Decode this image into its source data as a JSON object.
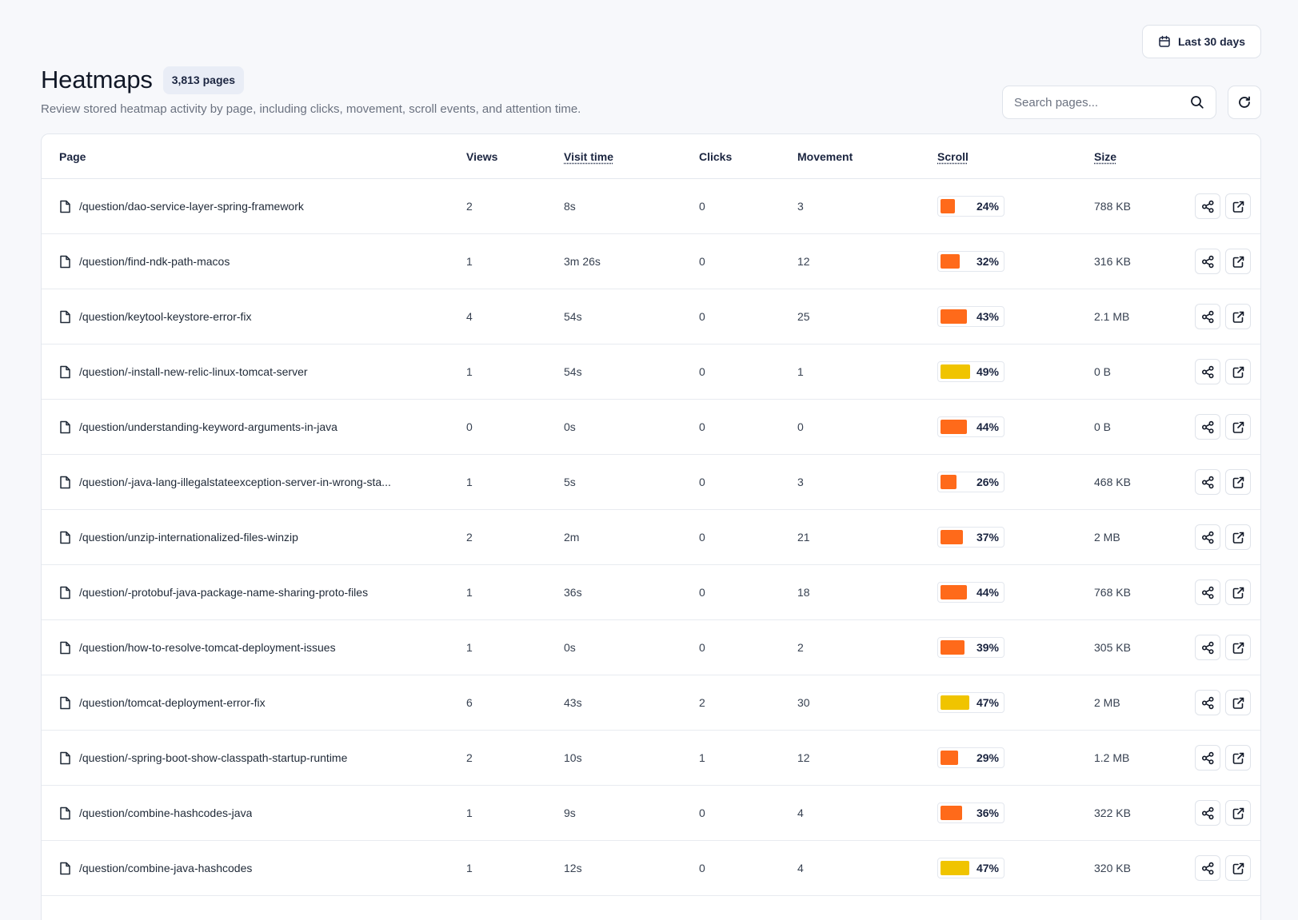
{
  "header": {
    "title": "Heatmaps",
    "count_badge": "3,813 pages",
    "subtitle": "Review stored heatmap activity by page, including clicks, movement, scroll events, and attention time.",
    "date_range_label": "Last 30 days",
    "search_placeholder": "Search pages..."
  },
  "table": {
    "columns": [
      "Page",
      "Views",
      "Visit time",
      "Clicks",
      "Movement",
      "Scroll",
      "Size"
    ],
    "rows": [
      {
        "page": "/question/dao-service-layer-spring-framework",
        "views": "2",
        "visit_time": "8s",
        "clicks": "0",
        "movement": "3",
        "scroll": "24%",
        "scroll_level": 0.24,
        "scroll_color": "#ff6a1a",
        "size": "788 KB"
      },
      {
        "page": "/question/find-ndk-path-macos",
        "views": "1",
        "visit_time": "3m 26s",
        "clicks": "0",
        "movement": "12",
        "scroll": "32%",
        "scroll_level": 0.32,
        "scroll_color": "#ff6a1a",
        "size": "316 KB"
      },
      {
        "page": "/question/keytool-keystore-error-fix",
        "views": "4",
        "visit_time": "54s",
        "clicks": "0",
        "movement": "25",
        "scroll": "43%",
        "scroll_level": 0.43,
        "scroll_color": "#ff6a1a",
        "size": "2.1 MB"
      },
      {
        "page": "/question/-install-new-relic-linux-tomcat-server",
        "views": "1",
        "visit_time": "54s",
        "clicks": "0",
        "movement": "1",
        "scroll": "49%",
        "scroll_level": 0.49,
        "scroll_color": "#f0c400",
        "size": "0 B"
      },
      {
        "page": "/question/understanding-keyword-arguments-in-java",
        "views": "0",
        "visit_time": "0s",
        "clicks": "0",
        "movement": "0",
        "scroll": "44%",
        "scroll_level": 0.44,
        "scroll_color": "#ff6a1a",
        "size": "0 B"
      },
      {
        "page": "/question/-java-lang-illegalstateexception-server-in-wrong-sta...",
        "views": "1",
        "visit_time": "5s",
        "clicks": "0",
        "movement": "3",
        "scroll": "26%",
        "scroll_level": 0.26,
        "scroll_color": "#ff6a1a",
        "size": "468 KB"
      },
      {
        "page": "/question/unzip-internationalized-files-winzip",
        "views": "2",
        "visit_time": "2m",
        "clicks": "0",
        "movement": "21",
        "scroll": "37%",
        "scroll_level": 0.37,
        "scroll_color": "#ff6a1a",
        "size": "2 MB"
      },
      {
        "page": "/question/-protobuf-java-package-name-sharing-proto-files",
        "views": "1",
        "visit_time": "36s",
        "clicks": "0",
        "movement": "18",
        "scroll": "44%",
        "scroll_level": 0.44,
        "scroll_color": "#ff6a1a",
        "size": "768 KB"
      },
      {
        "page": "/question/how-to-resolve-tomcat-deployment-issues",
        "views": "1",
        "visit_time": "0s",
        "clicks": "0",
        "movement": "2",
        "scroll": "39%",
        "scroll_level": 0.39,
        "scroll_color": "#ff6a1a",
        "size": "305 KB"
      },
      {
        "page": "/question/tomcat-deployment-error-fix",
        "views": "6",
        "visit_time": "43s",
        "clicks": "2",
        "movement": "30",
        "scroll": "47%",
        "scroll_level": 0.47,
        "scroll_color": "#f0c400",
        "size": "2 MB"
      },
      {
        "page": "/question/-spring-boot-show-classpath-startup-runtime",
        "views": "2",
        "visit_time": "10s",
        "clicks": "1",
        "movement": "12",
        "scroll": "29%",
        "scroll_level": 0.29,
        "scroll_color": "#ff6a1a",
        "size": "1.2 MB"
      },
      {
        "page": "/question/combine-hashcodes-java",
        "views": "1",
        "visit_time": "9s",
        "clicks": "0",
        "movement": "4",
        "scroll": "36%",
        "scroll_level": 0.36,
        "scroll_color": "#ff6a1a",
        "size": "322 KB"
      },
      {
        "page": "/question/combine-java-hashcodes",
        "views": "1",
        "visit_time": "12s",
        "clicks": "0",
        "movement": "4",
        "scroll": "47%",
        "scroll_level": 0.47,
        "scroll_color": "#f0c400",
        "size": "320 KB"
      }
    ]
  },
  "icons": {
    "date": "calendar-icon",
    "search": "search-icon",
    "refresh": "refresh-icon",
    "row_page": "file-icon",
    "row_share": "share-icon",
    "row_open": "external-link-icon"
  }
}
